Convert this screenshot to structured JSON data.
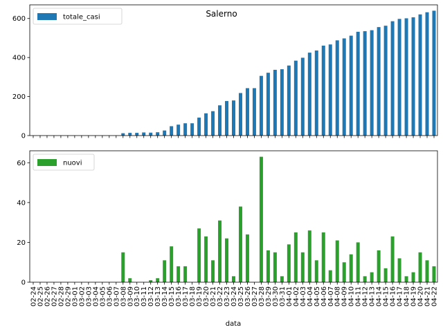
{
  "chart_data": [
    {
      "type": "bar",
      "title": "Salerno",
      "xlabel": "",
      "ylabel": "",
      "ylim": [
        0,
        670
      ],
      "yticks": [
        0,
        200,
        400,
        600
      ],
      "legend": "top-left",
      "series": [
        {
          "name": "totale_casi",
          "color": "#1f77b4",
          "values": [
            0,
            0,
            0,
            0,
            0,
            0,
            0,
            0,
            0,
            0,
            0,
            0,
            0,
            12,
            14,
            14,
            16,
            15,
            17,
            26,
            48,
            56,
            63,
            63,
            92,
            114,
            125,
            155,
            177,
            180,
            218,
            243,
            243,
            306,
            322,
            337,
            340,
            359,
            384,
            399,
            425,
            436,
            461,
            467,
            488,
            498,
            512,
            532,
            535,
            540,
            556,
            563,
            586,
            598,
            601,
            606,
            621,
            632,
            640
          ],
          "show_tick_labels": false
        }
      ]
    },
    {
      "type": "bar",
      "title": "",
      "xlabel": "data",
      "ylabel": "",
      "ylim": [
        0,
        66
      ],
      "yticks": [
        0,
        20,
        40,
        60
      ],
      "legend": "top-left",
      "categories": [
        "02-24",
        "02-25",
        "02-26",
        "02-27",
        "02-28",
        "02-29",
        "03-01",
        "03-02",
        "03-03",
        "03-04",
        "03-05",
        "03-06",
        "03-07",
        "03-08",
        "03-09",
        "03-10",
        "03-11",
        "03-12",
        "03-13",
        "03-14",
        "03-15",
        "03-16",
        "03-17",
        "03-18",
        "03-19",
        "03-20",
        "03-21",
        "03-22",
        "03-23",
        "03-24",
        "03-25",
        "03-26",
        "03-27",
        "03-28",
        "03-29",
        "03-30",
        "03-31",
        "04-01",
        "04-02",
        "04-03",
        "04-04",
        "04-05",
        "04-06",
        "04-07",
        "04-08",
        "04-09",
        "04-10",
        "04-11",
        "04-12",
        "04-13",
        "04-14",
        "04-15",
        "04-16",
        "04-17",
        "04-18",
        "04-19",
        "04-20",
        "04-21",
        "04-22"
      ],
      "series": [
        {
          "name": "nuovi",
          "color": "#2ca02c",
          "values": [
            0,
            0,
            0,
            0,
            0,
            0,
            0,
            0,
            0,
            0,
            0,
            0,
            0,
            15,
            2,
            0,
            0,
            1,
            2,
            11,
            18,
            8,
            8,
            0,
            27,
            23,
            11,
            31,
            22,
            3,
            38,
            24,
            0,
            63,
            16,
            15,
            3,
            19,
            25,
            15,
            26,
            11,
            25,
            6,
            21,
            10,
            14,
            20,
            3,
            5,
            16,
            7,
            23,
            12,
            3,
            5,
            15,
            11,
            8
          ]
        }
      ]
    }
  ]
}
